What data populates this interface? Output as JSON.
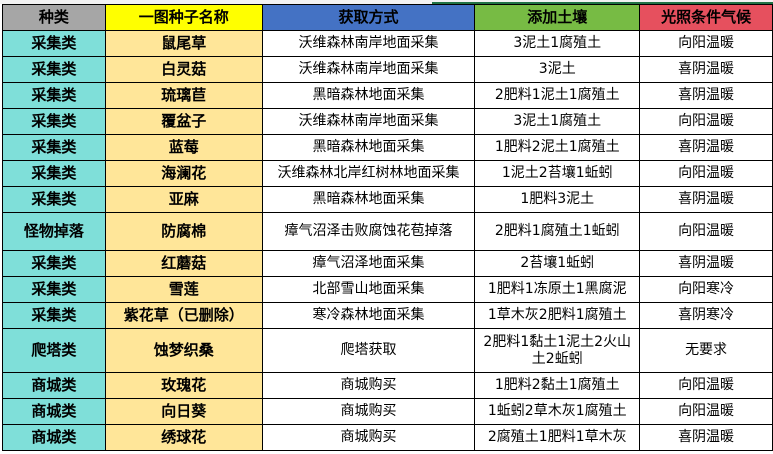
{
  "headers": [
    "种类",
    "一图种子名称",
    "获取方式",
    "添加土壤",
    "光照条件气候"
  ],
  "header_colors": [
    "#a6a6a6",
    "#ffff00",
    "#4472c4",
    "#77bb44",
    "#e6505e"
  ],
  "rows": [
    [
      "采集类",
      "鼠尾草",
      "沃维森林南岸地面采集",
      "3泥土1腐殖土",
      "向阳温暖"
    ],
    [
      "采集类",
      "白灵菇",
      "沃维森林南岸地面采集",
      "3泥土",
      "喜阴温暖"
    ],
    [
      "采集类",
      "琉璃苣",
      "黑暗森林地面采集",
      "2肥料1泥土1腐殖土",
      "喜阴温暖"
    ],
    [
      "采集类",
      "覆盆子",
      "沃维森林南岸地面采集",
      "3泥土1腐殖土",
      "向阳温暖"
    ],
    [
      "采集类",
      "蓝莓",
      "黑暗森林地面采集",
      "1肥料2泥土1腐殖土",
      "喜阴温暖"
    ],
    [
      "采集类",
      "海澜花",
      "沃维森林北岸红树林地面采集",
      "1泥土2苔壤1蚯蚓",
      "向阳温暖"
    ],
    [
      "采集类",
      "亚麻",
      "黑暗森林地面采集",
      "1肥料3泥土",
      "喜阴温暖"
    ],
    [
      "怪物掉落",
      "防腐棉",
      "瘴气沼泽击败腐蚀花苞掉落",
      "2肥料1腐殖土1蚯蚓",
      "向阳温暖"
    ],
    [
      "采集类",
      "红蘑菇",
      "瘴气沼泽地面采集",
      "2苔壤1蚯蚓",
      "喜阴温暖"
    ],
    [
      "采集类",
      "雪莲",
      "北部雪山地面采集",
      "1肥料1冻原土1黑腐泥",
      "向阳寒冷"
    ],
    [
      "采集类",
      "紫花草（已删除）",
      "寒冷森林地面采集",
      "1草木灰2肥料1腐殖土",
      "喜阴寒冷"
    ],
    [
      "爬塔类",
      "蚀梦织桑",
      "爬塔获取",
      "2肥料1黏土1泥土2火山土2蚯蚓",
      "无要求"
    ],
    [
      "商城类",
      "玫瑰花",
      "商城购买",
      "1肥料2黏土1腐殖土",
      "向阳温暖"
    ],
    [
      "商城类",
      "向日葵",
      "商城购买",
      "1蚯蚓2草木灰1腐殖土",
      "向阳温暖"
    ],
    [
      "商城类",
      "绣球花",
      "商城购买",
      "2腐殖土1肥料1草木灰",
      "喜阴温暖"
    ]
  ]
}
